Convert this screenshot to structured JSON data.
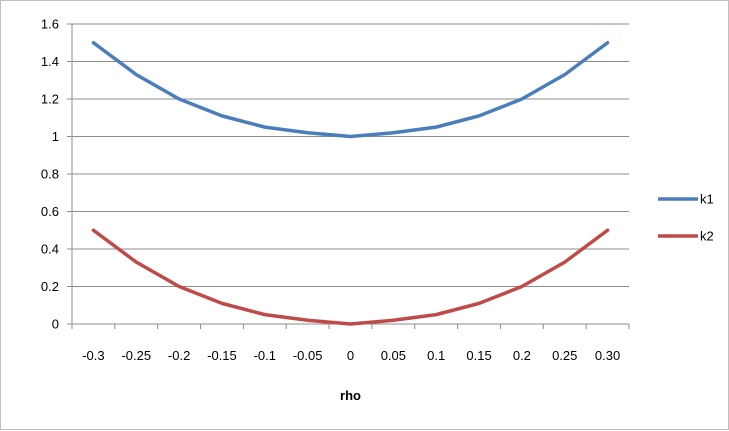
{
  "chart_data": {
    "type": "line",
    "categories": [
      "-0.3",
      "-0.25",
      "-0.2",
      "-0.15",
      "-0.1",
      "-0.05",
      "0",
      "0.05",
      "0.1",
      "0.15",
      "0.2",
      "0.25",
      "0.30"
    ],
    "series": [
      {
        "name": "k1",
        "color": "#4a7ebb",
        "values": [
          1.5,
          1.33,
          1.2,
          1.11,
          1.05,
          1.02,
          1.0,
          1.02,
          1.05,
          1.11,
          1.2,
          1.33,
          1.5
        ]
      },
      {
        "name": "k2",
        "color": "#be4b48",
        "values": [
          0.5,
          0.33,
          0.2,
          0.11,
          0.05,
          0.02,
          0.0,
          0.02,
          0.05,
          0.11,
          0.2,
          0.33,
          0.5
        ]
      }
    ],
    "xlabel": "rho",
    "ylabel": "",
    "ylim": [
      0,
      1.6
    ],
    "yticks": [
      "0",
      "0.2",
      "0.4",
      "0.6",
      "0.8",
      "1",
      "1.2",
      "1.4",
      "1.6"
    ],
    "grid": "horizontal",
    "legend": "right"
  }
}
